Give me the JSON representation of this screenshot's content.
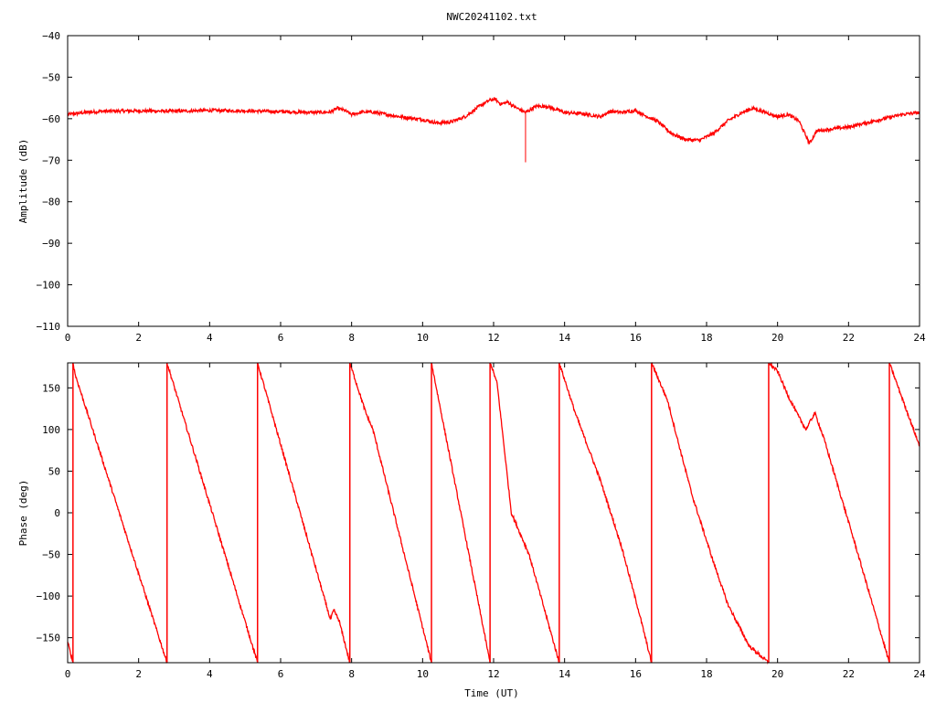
{
  "title": "NWC20241102.txt",
  "colors": {
    "series": "#ff0000",
    "axis": "#000000",
    "background": "#ffffff"
  },
  "chart_data": [
    {
      "type": "line",
      "title": "NWC20241102.txt",
      "xlabel": "",
      "ylabel": "Amplitude (dB)",
      "xlim": [
        0,
        24
      ],
      "ylim": [
        -110,
        -40
      ],
      "xticks": [
        0,
        2,
        4,
        6,
        8,
        10,
        12,
        14,
        16,
        18,
        20,
        22,
        24
      ],
      "xtick_labels": [
        "0",
        "2",
        "4",
        "6",
        "8",
        "10",
        "12",
        "14",
        "16",
        "18",
        "20",
        "22",
        "24"
      ],
      "yticks": [
        -110,
        -100,
        -90,
        -80,
        -70,
        -60,
        -50,
        -40
      ],
      "ytick_labels": [
        "−110",
        "−100",
        "−90",
        "−80",
        "−70",
        "−60",
        "−50",
        "−40"
      ],
      "grid": false,
      "noise": 0.4,
      "series": [
        {
          "x": [
            0,
            0.5,
            1,
            2,
            3,
            4,
            5,
            6,
            7,
            7.4,
            7.6,
            7.8,
            8.0,
            8.3,
            8.6,
            9,
            9.5,
            10,
            10.4,
            10.8,
            11.2,
            11.6,
            11.9,
            12.05,
            12.2,
            12.4,
            12.6,
            12.9,
            13.0,
            13.2,
            13.5,
            14,
            14.5,
            15,
            15.3,
            15.6,
            16,
            16.2,
            16.6,
            17,
            17.4,
            17.8,
            18.2,
            18.6,
            19,
            19.3,
            19.6,
            20,
            20.3,
            20.6,
            20.9,
            21.1,
            21.5,
            22,
            22.5,
            23,
            23.5,
            24
          ],
          "y": [
            -59,
            -58.5,
            -58.2,
            -58.1,
            -58.2,
            -58.0,
            -58.1,
            -58.3,
            -58.5,
            -58.4,
            -57.5,
            -58.0,
            -59.0,
            -58.4,
            -58.4,
            -59.0,
            -59.7,
            -60.2,
            -61.0,
            -60.8,
            -59.5,
            -57.0,
            -55.5,
            -55.3,
            -56.5,
            -56.0,
            -57.2,
            -58.5,
            -58.0,
            -57.0,
            -57.0,
            -58.5,
            -58.8,
            -59.5,
            -58.2,
            -58.5,
            -58.0,
            -59.0,
            -60.5,
            -63.5,
            -65.0,
            -65.2,
            -63.5,
            -60.5,
            -58.5,
            -57.5,
            -58.3,
            -59.5,
            -59.0,
            -60.5,
            -66.0,
            -63.0,
            -62.5,
            -62.0,
            -61.0,
            -60.0,
            -59.0,
            -58.5
          ]
        }
      ],
      "spikes": [
        {
          "x": 12.9,
          "y": [
            -58.5,
            -70.5
          ]
        }
      ]
    },
    {
      "type": "line",
      "title": "",
      "xlabel": "Time (UT)",
      "ylabel": "Phase (deg)",
      "xlim": [
        0,
        24
      ],
      "ylim": [
        -180,
        180
      ],
      "xticks": [
        0,
        2,
        4,
        6,
        8,
        10,
        12,
        14,
        16,
        18,
        20,
        22,
        24
      ],
      "xtick_labels": [
        "0",
        "2",
        "4",
        "6",
        "8",
        "10",
        "12",
        "14",
        "16",
        "18",
        "20",
        "22",
        "24"
      ],
      "yticks": [
        -150,
        -100,
        -50,
        0,
        50,
        100,
        150
      ],
      "ytick_labels": [
        "−150",
        "−100",
        "−50",
        "0",
        "50",
        "100",
        "150"
      ],
      "grid": false,
      "noise": 2,
      "segments": [
        {
          "x": [
            0,
            0.15
          ],
          "y": [
            -155,
            -180
          ]
        },
        {
          "x": [
            0.15,
            0.22,
            2.8
          ],
          "y": [
            180,
            165,
            -180
          ]
        },
        {
          "x": [
            2.8,
            5.35
          ],
          "y": [
            180,
            -180
          ]
        },
        {
          "x": [
            5.35,
            7.4,
            7.5,
            7.65,
            7.95
          ],
          "y": [
            180,
            -128,
            -117,
            -130,
            -180
          ]
        },
        {
          "x": [
            7.95,
            8.4,
            8.6,
            10.25
          ],
          "y": [
            180,
            120,
            100,
            -180
          ]
        },
        {
          "x": [
            10.25,
            11.9
          ],
          "y": [
            180,
            -180
          ]
        },
        {
          "x": [
            11.9,
            11.95,
            12.1,
            12.5,
            12.9,
            13.0,
            13.85
          ],
          "y": [
            180,
            175,
            155,
            0,
            -40,
            -50,
            -180
          ]
        },
        {
          "x": [
            13.85,
            14.3,
            15.0,
            15.6,
            16.1,
            16.45
          ],
          "y": [
            180,
            120,
            40,
            -40,
            -120,
            -180
          ]
        },
        {
          "x": [
            16.45,
            16.9,
            17.2,
            17.6,
            18.2,
            18.6,
            19.2,
            19.75
          ],
          "y": [
            180,
            135,
            85,
            20,
            -60,
            -110,
            -160,
            -180
          ]
        },
        {
          "x": [
            19.75,
            20.0,
            20.3,
            20.6,
            20.8,
            21.05,
            21.3,
            22.2,
            23.15
          ],
          "y": [
            180,
            170,
            140,
            115,
            100,
            120,
            90,
            -40,
            -180
          ]
        },
        {
          "x": [
            23.15,
            24
          ],
          "y": [
            180,
            80
          ]
        }
      ],
      "verticals": [
        {
          "x": 0.15,
          "y": [
            -180,
            180
          ]
        },
        {
          "x": 2.8,
          "y": [
            -180,
            180
          ]
        },
        {
          "x": 5.35,
          "y": [
            -180,
            180
          ]
        },
        {
          "x": 7.95,
          "y": [
            -180,
            180
          ]
        },
        {
          "x": 10.25,
          "y": [
            -180,
            180
          ]
        },
        {
          "x": 11.9,
          "y": [
            -180,
            180
          ]
        },
        {
          "x": 13.85,
          "y": [
            -180,
            180
          ]
        },
        {
          "x": 16.45,
          "y": [
            -180,
            180
          ]
        },
        {
          "x": 19.75,
          "y": [
            -180,
            180
          ]
        },
        {
          "x": 23.15,
          "y": [
            -180,
            180
          ]
        }
      ]
    }
  ]
}
